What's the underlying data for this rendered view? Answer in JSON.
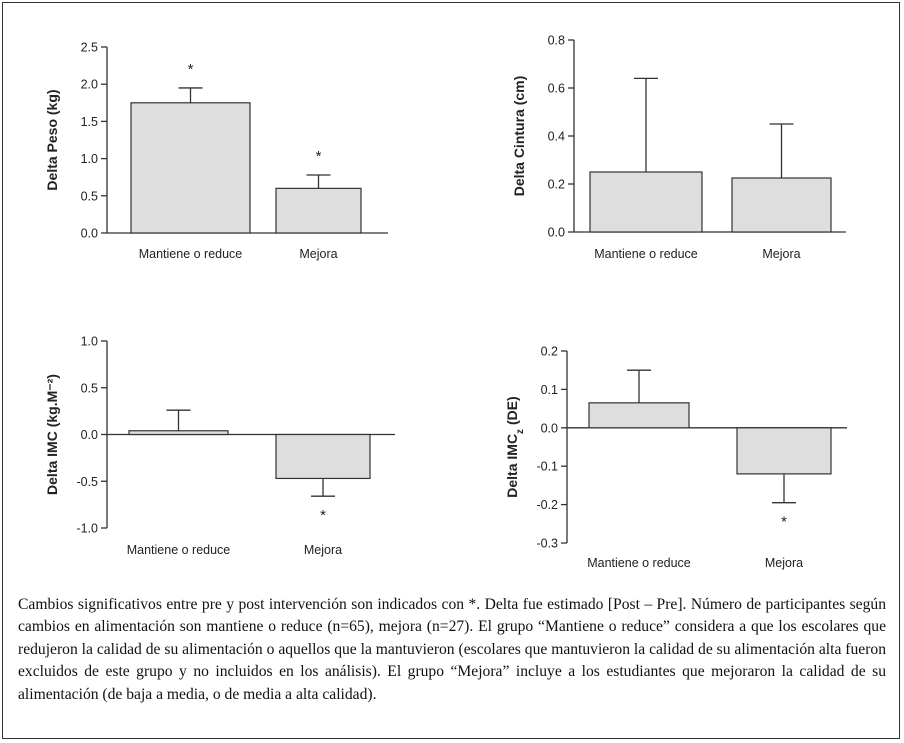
{
  "chart_data": [
    {
      "type": "bar",
      "categories": [
        "Mantiene o reduce",
        "Mejora"
      ],
      "values": [
        1.75,
        0.6
      ],
      "errors": [
        0.2,
        0.18
      ],
      "significance": [
        "*",
        "*"
      ],
      "ylabel": "Delta Peso (kg)",
      "ylim": [
        0,
        2.5
      ],
      "yticks": [
        "0.0",
        "0.5",
        "1.0",
        "1.5",
        "2.0",
        "2.5"
      ],
      "bar_color": "#dedede"
    },
    {
      "type": "bar",
      "categories": [
        "Mantiene o reduce",
        "Mejora"
      ],
      "values": [
        0.25,
        0.225
      ],
      "errors": [
        0.39,
        0.225
      ],
      "significance": [
        "",
        ""
      ],
      "ylabel": "Delta Cintura (cm)",
      "ylim": [
        0,
        0.8
      ],
      "yticks": [
        "0.0",
        "0.2",
        "0.4",
        "0.6",
        "0.8"
      ],
      "bar_color": "#dedede"
    },
    {
      "type": "bar",
      "categories": [
        "Mantiene o reduce",
        "Mejora"
      ],
      "values": [
        0.04,
        -0.47
      ],
      "errors": [
        0.22,
        0.19
      ],
      "significance": [
        "",
        "*"
      ],
      "ylabel": "Delta IMC (kg.M⁻²)",
      "ylim": [
        -1.0,
        1.0
      ],
      "yticks": [
        "-1.0",
        "-0.5",
        "0.0",
        "0.5",
        "1.0"
      ],
      "bar_color": "#dedede"
    },
    {
      "type": "bar",
      "categories": [
        "Mantiene o reduce",
        "Mejora"
      ],
      "values": [
        0.065,
        -0.12
      ],
      "errors": [
        0.085,
        0.075
      ],
      "significance": [
        "",
        "*"
      ],
      "ylabel": "Delta IMCz (DE)",
      "ylim": [
        -0.3,
        0.2
      ],
      "yticks": [
        "-0.3",
        "-0.2",
        "-0.1",
        "0.0",
        "0.1",
        "0.2"
      ],
      "bar_color": "#dedede"
    }
  ],
  "caption": "Cambios significativos entre pre y post intervención son indicados con *. Delta fue estimado [Post – Pre]. Número de participantes según cambios en alimentación son mantiene o reduce (n=65), mejora (n=27). El grupo “Mantiene o reduce” considera a que los escolares que redujeron la calidad de su alimentación o aquellos que la mantuvieron (escolares que mantuvieron la calidad de su alimentación alta fueron excluidos de este grupo y no incluidos en los análisis). El grupo “Mejora” incluye a los estudiantes que mejoraron la calidad de su alimentación (de baja a media, o de media a alta calidad)."
}
